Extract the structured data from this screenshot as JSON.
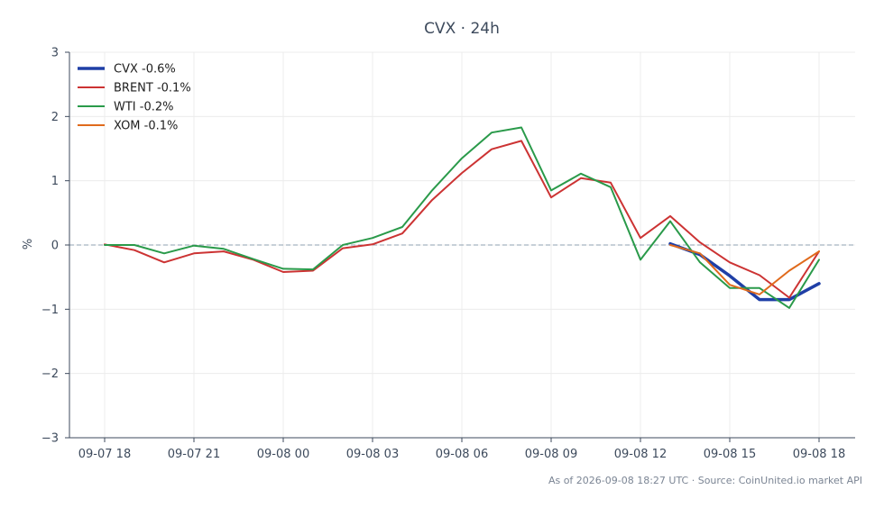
{
  "chart_data": {
    "type": "line",
    "title": "CVX · 24h",
    "ylabel": "%",
    "xlabel": "",
    "ylim": [
      -3,
      3
    ],
    "yticks": [
      3,
      2,
      1,
      0,
      -1,
      -2,
      -3
    ],
    "ytick_labels": [
      "3",
      "2",
      "1",
      "0",
      "−1",
      "−2",
      "−3"
    ],
    "x": [
      "09-07 18:00",
      "09-07 19:00",
      "09-07 20:00",
      "09-07 21:00",
      "09-07 22:00",
      "09-07 23:00",
      "09-08 00:00",
      "09-08 01:00",
      "09-08 02:00",
      "09-08 03:00",
      "09-08 04:00",
      "09-08 05:00",
      "09-08 06:00",
      "09-08 07:00",
      "09-08 08:00",
      "09-08 09:00",
      "09-08 10:00",
      "09-08 11:00",
      "09-08 12:00",
      "09-08 13:00",
      "09-08 14:00",
      "09-08 15:00",
      "09-08 16:00",
      "09-08 17:00",
      "09-08 18:00"
    ],
    "xticks": [
      "09-07 18",
      "09-07 21",
      "09-08 00",
      "09-08 03",
      "09-08 06",
      "09-08 09",
      "09-08 12",
      "09-08 15",
      "09-08 18"
    ],
    "grid": true,
    "legend_position": "top-left",
    "series": [
      {
        "name": "CVX -0.6%",
        "color": "#1f3fa6",
        "width": 3.5,
        "values": [
          null,
          null,
          null,
          null,
          null,
          null,
          null,
          null,
          null,
          null,
          null,
          null,
          null,
          null,
          null,
          null,
          null,
          null,
          null,
          0.02,
          -0.15,
          -0.48,
          -0.85,
          -0.85,
          -0.6
        ]
      },
      {
        "name": "BRENT -0.1%",
        "color": "#cc3333",
        "width": 2,
        "values": [
          0.01,
          -0.08,
          -0.27,
          -0.13,
          -0.1,
          -0.23,
          -0.42,
          -0.4,
          -0.05,
          0.01,
          0.18,
          0.7,
          1.12,
          1.49,
          1.62,
          0.74,
          1.04,
          0.97,
          0.11,
          0.45,
          0.04,
          -0.27,
          -0.47,
          -0.82,
          -0.1
        ]
      },
      {
        "name": "WTI -0.2%",
        "color": "#2a9a4a",
        "width": 2,
        "values": [
          0.0,
          0.0,
          -0.13,
          -0.01,
          -0.06,
          -0.22,
          -0.37,
          -0.38,
          0.0,
          0.11,
          0.28,
          0.85,
          1.35,
          1.75,
          1.83,
          0.85,
          1.11,
          0.9,
          -0.23,
          0.37,
          -0.27,
          -0.67,
          -0.67,
          -0.98,
          -0.23
        ]
      },
      {
        "name": "XOM -0.1%",
        "color": "#e06a1c",
        "width": 2,
        "values": [
          null,
          null,
          null,
          null,
          null,
          null,
          null,
          null,
          null,
          null,
          null,
          null,
          null,
          null,
          null,
          null,
          null,
          null,
          null,
          0.0,
          -0.13,
          -0.62,
          -0.77,
          -0.4,
          -0.1
        ]
      }
    ],
    "footer": "As of 2026-09-08 18:27 UTC · Source: CoinUnited.io market API"
  }
}
